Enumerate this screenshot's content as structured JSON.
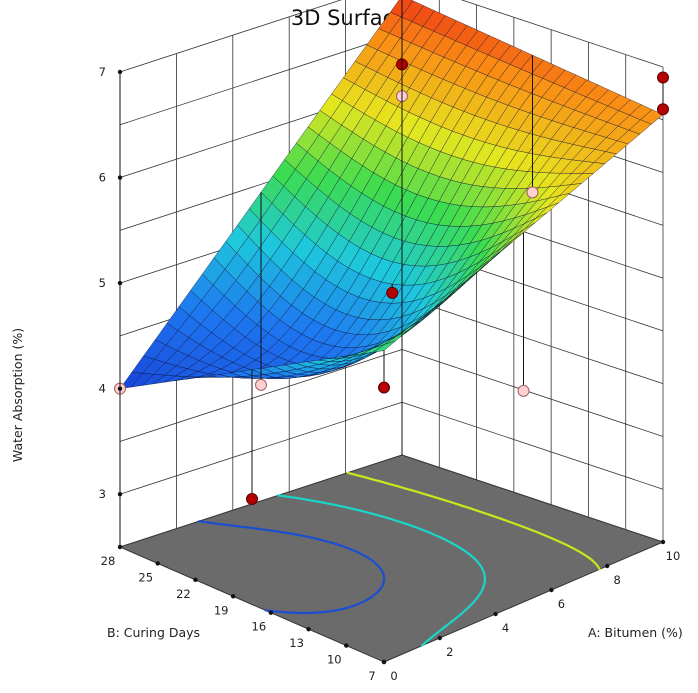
{
  "chart_data": {
    "type": "surface3d",
    "title": "3D Surface",
    "zlabel": "Water Absorption (%)",
    "xlabel": "A: Bitumen (%)",
    "ylabel": "B: Curing Days",
    "x_ticks": [
      "0",
      "2",
      "4",
      "6",
      "8",
      "10"
    ],
    "y_ticks": [
      "7",
      "10",
      "13",
      "16",
      "19",
      "22",
      "25",
      "28"
    ],
    "z_ticks": [
      "3",
      "4",
      "5",
      "6",
      "7"
    ],
    "xlim": [
      0,
      10
    ],
    "ylim": [
      7,
      28
    ],
    "zlim": [
      2.5,
      7
    ],
    "surface_corners": {
      "A0_B7": 5.45,
      "A0_B28": 4.0,
      "A10_B7": 6.55,
      "A10_B28": 6.85
    },
    "design_points": [
      {
        "A": 10,
        "B": 7,
        "z": 6.9,
        "position": "above surface"
      },
      {
        "A": 10,
        "B": 7,
        "z": 6.6,
        "position": "above surface"
      },
      {
        "A": 5,
        "B": 17.5,
        "z": 4.95,
        "position": "above surface"
      },
      {
        "A": 0,
        "B": 7,
        "z": 5.1,
        "position": "above surface"
      },
      {
        "A": 0,
        "B": 28,
        "z": 4.0,
        "position": "below surface"
      },
      {
        "A": 10,
        "B": 28,
        "z": 6.2,
        "position": "above surface"
      },
      {
        "A": 10,
        "B": 28,
        "z": 5.9,
        "position": "below surface"
      },
      {
        "A": 5,
        "B": 7,
        "z": 4.5,
        "position": "below surface"
      },
      {
        "A": 5,
        "B": 28,
        "z": 3.6,
        "position": "below surface"
      },
      {
        "A": 0,
        "B": 17.5,
        "z": 3.5,
        "position": "above surface"
      },
      {
        "A": 10,
        "B": 17.5,
        "z": 5.4,
        "position": "below surface"
      }
    ],
    "colors": {
      "floor": "#6b6b6b",
      "point_above": "#b30000",
      "point_below": "#ffd0d0",
      "grid": "#333333"
    }
  }
}
